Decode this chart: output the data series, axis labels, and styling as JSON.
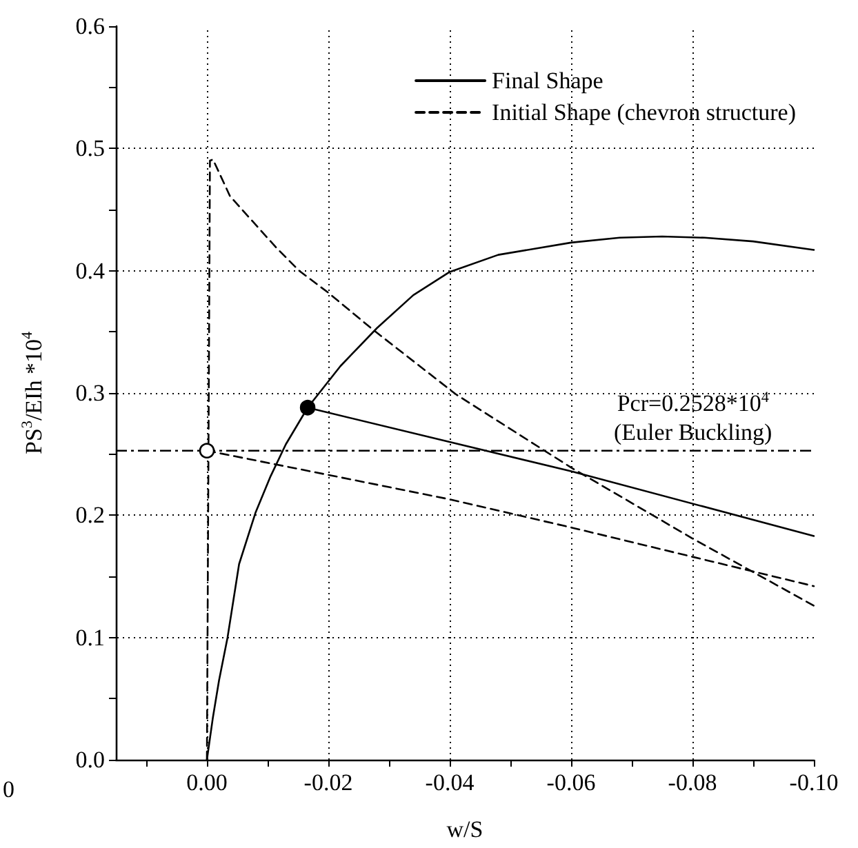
{
  "chart_data": {
    "type": "line",
    "xlabel": "w/S",
    "ylabel": "PS$^{3}$/EIh *10$^{4}$",
    "xlim": [
      0.015,
      -0.1
    ],
    "xticks": [
      {
        "value": 0.01,
        "label": null
      },
      {
        "value": 0,
        "label": "0.00"
      },
      {
        "value": -0.01,
        "label": null
      },
      -0.02,
      {
        "value": -0.03,
        "label": null
      },
      -0.04,
      {
        "value": -0.05,
        "label": null
      },
      -0.06,
      {
        "value": -0.07,
        "label": null
      },
      -0.08,
      {
        "value": -0.09,
        "label": null
      },
      {
        "value": -0.1,
        "label": "-0.10"
      }
    ],
    "ylim": [
      0,
      0.6
    ],
    "yticks": [
      {
        "value": 0,
        "label": "0.0"
      },
      {
        "value": 0.05,
        "label": null
      },
      0.1,
      {
        "value": 0.15,
        "label": null
      },
      0.2,
      {
        "value": 0.25,
        "label": null
      },
      0.3,
      {
        "value": 0.35,
        "label": null
      },
      0.4,
      {
        "value": 0.45,
        "label": null
      },
      0.5,
      {
        "value": 0.55,
        "label": null
      },
      0.6
    ],
    "grid": true,
    "legend": "top right",
    "marker": "none",
    "series": [
      {
        "name": "Final Shape",
        "type": "line",
        "color": "#000000",
        "line_style": "solid",
        "x": [
          0,
          -0.001,
          -0.002,
          -0.0034,
          -0.0053,
          -0.008,
          -0.0105,
          -0.013,
          -0.0166,
          -0.022,
          -0.028,
          -0.034,
          -0.04,
          -0.048,
          -0.06,
          -0.068,
          -0.075,
          -0.082,
          -0.09,
          -0.1
        ],
        "values": [
          0,
          0.035,
          0.065,
          0.1,
          0.16,
          0.202,
          0.232,
          0.258,
          0.288,
          0.322,
          0.353,
          0.38,
          0.399,
          0.413,
          0.423,
          0.427,
          0.428,
          0.427,
          0.424,
          0.417
        ]
      },
      {
        "type": "line",
        "color": "#000000",
        "line_style": "solid",
        "x": [
          -0.0166,
          -0.06,
          -0.1
        ],
        "values": [
          0.288,
          0.236,
          0.183
        ]
      },
      {
        "name": "Initial Shape (chevron structure)",
        "type": "line",
        "color": "#000000",
        "line_style": "dashed",
        "x": [
          0,
          -0.0005,
          -0.001,
          -0.0038,
          -0.0114,
          -0.0152,
          -0.02,
          -0.0273,
          -0.041,
          -0.06,
          -0.08,
          -0.1
        ],
        "values": [
          0,
          0.49,
          0.491,
          0.461,
          0.419,
          0.4,
          0.382,
          0.352,
          0.299,
          0.239,
          0.181,
          0.126
        ]
      },
      {
        "type": "line",
        "color": "#000000",
        "line_style": "dashed",
        "x": [
          0,
          -0.02,
          -0.04,
          -0.06,
          -0.08,
          -0.1
        ],
        "values": [
          0.2528,
          0.233,
          0.213,
          0.19,
          0.166,
          0.142
        ]
      },
      {
        "type": "scatter",
        "marker": "circle",
        "color": "#000000",
        "x": [
          -0.0166
        ],
        "values": [
          0.288
        ]
      },
      {
        "type": "scatter",
        "marker": "circle",
        "color": "#ffffff",
        "x": [
          0
        ],
        "values": [
          0.2528
        ]
      }
    ],
    "ref_lines": [
      {
        "axis": "y",
        "value": 0.2528,
        "label": "Pcr=0.2528*10$^{4}$\n(Euler Buckling)",
        "line_style": "dashdot",
        "color": "#000000"
      }
    ],
    "annotations": [
      "0"
    ]
  }
}
